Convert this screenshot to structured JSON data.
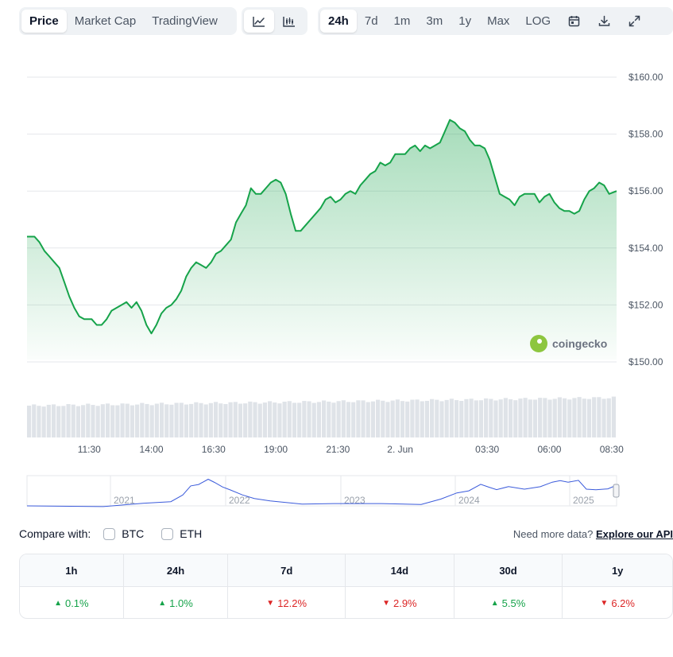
{
  "toolbar": {
    "view_tabs": [
      "Price",
      "Market Cap",
      "TradingView"
    ],
    "view_active": "Price",
    "chart_type_icons": [
      "line-chart-icon",
      "candlestick-icon"
    ],
    "ranges": [
      "24h",
      "7d",
      "1m",
      "3m",
      "1y",
      "Max",
      "LOG"
    ],
    "range_active": "24h",
    "tool_icons": [
      "calendar-icon",
      "download-icon",
      "fullscreen-icon"
    ]
  },
  "watermark": "coingecko",
  "chart_data": {
    "type": "line",
    "yticks": [
      "$160.00",
      "$158.00",
      "$156.00",
      "$154.00",
      "$152.00",
      "$150.00"
    ],
    "ylim": [
      150,
      160
    ],
    "xticks": [
      "11:30",
      "14:00",
      "16:30",
      "19:00",
      "21:30",
      "2. Jun",
      "03:30",
      "06:00",
      "08:30"
    ],
    "x_start_hours": 9.0,
    "x_end_hours": 32.7,
    "series": [
      {
        "points": [
          [
            9.0,
            154.4
          ],
          [
            9.3,
            154.4
          ],
          [
            9.5,
            154.2
          ],
          [
            9.7,
            153.9
          ],
          [
            9.9,
            153.7
          ],
          [
            10.1,
            153.5
          ],
          [
            10.3,
            153.3
          ],
          [
            10.5,
            152.8
          ],
          [
            10.7,
            152.3
          ],
          [
            10.9,
            151.9
          ],
          [
            11.1,
            151.6
          ],
          [
            11.3,
            151.5
          ],
          [
            11.6,
            151.5
          ],
          [
            11.8,
            151.3
          ],
          [
            12.0,
            151.3
          ],
          [
            12.2,
            151.5
          ],
          [
            12.4,
            151.8
          ],
          [
            12.6,
            151.9
          ],
          [
            12.8,
            152.0
          ],
          [
            13.0,
            152.1
          ],
          [
            13.2,
            151.9
          ],
          [
            13.4,
            152.1
          ],
          [
            13.6,
            151.8
          ],
          [
            13.8,
            151.3
          ],
          [
            14.0,
            151.0
          ],
          [
            14.2,
            151.3
          ],
          [
            14.4,
            151.7
          ],
          [
            14.6,
            151.9
          ],
          [
            14.8,
            152.0
          ],
          [
            15.0,
            152.2
          ],
          [
            15.2,
            152.5
          ],
          [
            15.4,
            153.0
          ],
          [
            15.6,
            153.3
          ],
          [
            15.8,
            153.5
          ],
          [
            16.0,
            153.4
          ],
          [
            16.2,
            153.3
          ],
          [
            16.4,
            153.5
          ],
          [
            16.6,
            153.8
          ],
          [
            16.8,
            153.9
          ],
          [
            17.0,
            154.1
          ],
          [
            17.2,
            154.3
          ],
          [
            17.4,
            154.9
          ],
          [
            17.6,
            155.2
          ],
          [
            17.8,
            155.5
          ],
          [
            18.0,
            156.1
          ],
          [
            18.2,
            155.9
          ],
          [
            18.4,
            155.9
          ],
          [
            18.6,
            156.1
          ],
          [
            18.8,
            156.3
          ],
          [
            19.0,
            156.4
          ],
          [
            19.2,
            156.3
          ],
          [
            19.4,
            155.9
          ],
          [
            19.6,
            155.2
          ],
          [
            19.8,
            154.6
          ],
          [
            20.0,
            154.6
          ],
          [
            20.2,
            154.8
          ],
          [
            20.4,
            155.0
          ],
          [
            20.6,
            155.2
          ],
          [
            20.8,
            155.4
          ],
          [
            21.0,
            155.7
          ],
          [
            21.2,
            155.8
          ],
          [
            21.4,
            155.6
          ],
          [
            21.6,
            155.7
          ],
          [
            21.8,
            155.9
          ],
          [
            22.0,
            156.0
          ],
          [
            22.2,
            155.9
          ],
          [
            22.4,
            156.2
          ],
          [
            22.6,
            156.4
          ],
          [
            22.8,
            156.6
          ],
          [
            23.0,
            156.7
          ],
          [
            23.2,
            157.0
          ],
          [
            23.4,
            156.9
          ],
          [
            23.6,
            157.0
          ],
          [
            23.8,
            157.3
          ],
          [
            24.0,
            157.3
          ],
          [
            24.2,
            157.3
          ],
          [
            24.4,
            157.5
          ],
          [
            24.6,
            157.6
          ],
          [
            24.8,
            157.4
          ],
          [
            25.0,
            157.6
          ],
          [
            25.2,
            157.5
          ],
          [
            25.4,
            157.6
          ],
          [
            25.6,
            157.7
          ],
          [
            25.8,
            158.1
          ],
          [
            26.0,
            158.5
          ],
          [
            26.2,
            158.4
          ],
          [
            26.4,
            158.2
          ],
          [
            26.6,
            158.1
          ],
          [
            26.8,
            157.8
          ],
          [
            27.0,
            157.6
          ],
          [
            27.2,
            157.6
          ],
          [
            27.4,
            157.5
          ],
          [
            27.6,
            157.1
          ],
          [
            27.8,
            156.5
          ],
          [
            28.0,
            155.9
          ],
          [
            28.2,
            155.8
          ],
          [
            28.4,
            155.7
          ],
          [
            28.6,
            155.5
          ],
          [
            28.8,
            155.8
          ],
          [
            29.0,
            155.9
          ],
          [
            29.2,
            155.9
          ],
          [
            29.4,
            155.9
          ],
          [
            29.6,
            155.6
          ],
          [
            29.8,
            155.8
          ],
          [
            30.0,
            155.9
          ],
          [
            30.2,
            155.6
          ],
          [
            30.4,
            155.4
          ],
          [
            30.6,
            155.3
          ],
          [
            30.8,
            155.3
          ],
          [
            31.0,
            155.2
          ],
          [
            31.2,
            155.3
          ],
          [
            31.4,
            155.7
          ],
          [
            31.6,
            156.0
          ],
          [
            31.8,
            156.1
          ],
          [
            32.0,
            156.3
          ],
          [
            32.2,
            156.2
          ],
          [
            32.4,
            155.9
          ],
          [
            32.7,
            156.0
          ]
        ]
      }
    ],
    "volume_color": "#dfe3e8",
    "line_color": "#16a34a",
    "navigator": {
      "years": [
        "2021",
        "2022",
        "2023",
        "2024",
        "2025"
      ]
    }
  },
  "compare": {
    "label": "Compare with:",
    "options": [
      "BTC",
      "ETH"
    ],
    "api_prefix": "Need more data?",
    "api_link": "Explore our API"
  },
  "performance": {
    "headers": [
      "1h",
      "24h",
      "7d",
      "14d",
      "30d",
      "1y"
    ],
    "values": [
      {
        "text": "0.1%",
        "dir": "up"
      },
      {
        "text": "1.0%",
        "dir": "up"
      },
      {
        "text": "12.2%",
        "dir": "down"
      },
      {
        "text": "2.9%",
        "dir": "down"
      },
      {
        "text": "5.5%",
        "dir": "up"
      },
      {
        "text": "6.2%",
        "dir": "down"
      }
    ]
  }
}
